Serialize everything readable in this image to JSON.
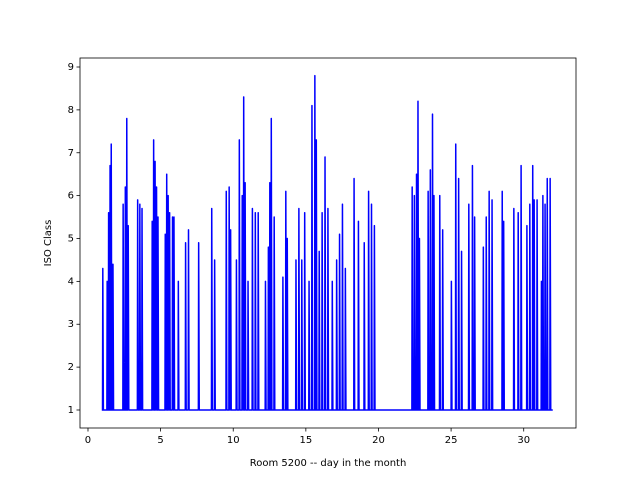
{
  "chart_data": {
    "type": "line",
    "xlabel": "Room 5200 -- day in the month",
    "ylabel": "ISO Class",
    "color": "#0000ff",
    "xlim": [
      -0.55,
      33.6
    ],
    "ylim": [
      0.58,
      9.21
    ],
    "xticks": [
      0,
      5,
      10,
      15,
      20,
      25,
      30
    ],
    "yticks": [
      1,
      2,
      3,
      4,
      5,
      6,
      7,
      8,
      9
    ],
    "x": [
      0.95,
      1.0,
      1.02,
      1.06,
      1.3,
      1.32,
      1.36,
      1.4,
      1.42,
      1.46,
      1.5,
      1.52,
      1.56,
      1.58,
      1.6,
      1.64,
      1.7,
      1.72,
      1.76,
      2.4,
      2.42,
      2.46,
      2.55,
      2.57,
      2.61,
      2.65,
      2.67,
      2.71,
      2.75,
      2.77,
      2.81,
      3.4,
      3.42,
      3.46,
      3.55,
      3.57,
      3.61,
      3.7,
      3.72,
      3.76,
      4.4,
      4.42,
      4.46,
      4.5,
      4.52,
      4.56,
      4.6,
      4.62,
      4.66,
      4.7,
      4.72,
      4.76,
      4.8,
      4.82,
      4.86,
      5.3,
      5.32,
      5.36,
      5.4,
      5.42,
      5.46,
      5.5,
      5.52,
      5.56,
      5.6,
      5.62,
      5.66,
      5.8,
      5.82,
      5.86,
      5.9,
      5.92,
      5.96,
      6.2,
      6.22,
      6.26,
      6.7,
      6.72,
      6.76,
      6.9,
      6.92,
      6.96,
      7.6,
      7.62,
      7.66,
      8.5,
      8.52,
      8.56,
      8.7,
      8.72,
      8.76,
      9.5,
      9.52,
      9.56,
      9.7,
      9.72,
      9.76,
      9.8,
      9.82,
      9.86,
      10.2,
      10.22,
      10.26,
      10.4,
      10.42,
      10.46,
      10.6,
      10.62,
      10.66,
      10.7,
      10.72,
      10.76,
      10.8,
      10.82,
      10.86,
      11.0,
      11.02,
      11.06,
      11.3,
      11.32,
      11.36,
      11.5,
      11.52,
      11.56,
      11.7,
      11.72,
      11.76,
      12.2,
      12.22,
      12.26,
      12.4,
      12.42,
      12.46,
      12.5,
      12.52,
      12.56,
      12.6,
      12.62,
      12.66,
      12.8,
      12.82,
      12.86,
      13.4,
      13.42,
      13.46,
      13.6,
      13.62,
      13.66,
      13.7,
      13.72,
      13.76,
      14.3,
      14.32,
      14.36,
      14.5,
      14.52,
      14.56,
      14.7,
      14.72,
      14.76,
      14.9,
      14.92,
      14.96,
      15.2,
      15.22,
      15.26,
      15.4,
      15.42,
      15.46,
      15.6,
      15.62,
      15.66,
      15.7,
      15.72,
      15.76,
      15.9,
      15.92,
      15.96,
      16.1,
      16.12,
      16.16,
      16.3,
      16.32,
      16.36,
      16.5,
      16.52,
      16.56,
      16.8,
      16.82,
      16.86,
      17.1,
      17.12,
      17.16,
      17.3,
      17.32,
      17.36,
      17.5,
      17.52,
      17.56,
      17.7,
      17.72,
      17.76,
      18.3,
      18.32,
      18.36,
      18.6,
      18.62,
      18.66,
      19.0,
      19.02,
      19.06,
      19.3,
      19.32,
      19.36,
      19.5,
      19.52,
      19.56,
      19.7,
      19.72,
      19.76,
      22.3,
      22.32,
      22.36,
      22.45,
      22.47,
      22.51,
      22.6,
      22.62,
      22.66,
      22.7,
      22.72,
      22.76,
      22.8,
      22.82,
      22.86,
      23.4,
      23.42,
      23.46,
      23.55,
      23.57,
      23.61,
      23.7,
      23.72,
      23.76,
      23.8,
      23.82,
      23.86,
      24.2,
      24.22,
      24.26,
      24.4,
      24.42,
      24.46,
      25.0,
      25.02,
      25.06,
      25.3,
      25.32,
      25.36,
      25.5,
      25.52,
      25.56,
      25.7,
      25.72,
      25.76,
      26.2,
      26.22,
      26.26,
      26.45,
      26.47,
      26.51,
      26.6,
      26.62,
      26.66,
      27.2,
      27.22,
      27.26,
      27.4,
      27.42,
      27.46,
      27.6,
      27.62,
      27.66,
      27.8,
      27.82,
      27.86,
      28.5,
      28.52,
      28.56,
      28.6,
      28.62,
      28.66,
      29.3,
      29.32,
      29.36,
      29.6,
      29.62,
      29.66,
      29.8,
      29.82,
      29.86,
      30.2,
      30.22,
      30.26,
      30.4,
      30.42,
      30.46,
      30.6,
      30.62,
      30.66,
      30.7,
      30.72,
      30.76,
      30.9,
      30.92,
      30.96,
      31.2,
      31.22,
      31.26,
      31.3,
      31.32,
      31.36,
      31.45,
      31.47,
      31.51,
      31.6,
      31.62,
      31.66,
      31.8,
      31.82,
      31.86,
      32.0
    ],
    "values": [
      1,
      1,
      4.3,
      1,
      1,
      4.0,
      1,
      1,
      5.6,
      1,
      1,
      6.7,
      1,
      1,
      7.2,
      1,
      1,
      4.4,
      1,
      1,
      5.8,
      1,
      1,
      6.2,
      1,
      1,
      7.8,
      1,
      1,
      5.3,
      1,
      1,
      5.9,
      1,
      1,
      5.8,
      1,
      1,
      5.7,
      1,
      1,
      5.4,
      1,
      1,
      7.3,
      1,
      1,
      6.8,
      1,
      1,
      6.2,
      1,
      1,
      5.5,
      1,
      1,
      5.1,
      1,
      1,
      6.5,
      1,
      1,
      6.0,
      1,
      1,
      5.6,
      1,
      1,
      5.5,
      1,
      1,
      5.5,
      1,
      1,
      4.0,
      1,
      1,
      4.9,
      1,
      1,
      5.2,
      1,
      1,
      4.9,
      1,
      1,
      5.7,
      1,
      1,
      4.5,
      1,
      1,
      6.1,
      1,
      1,
      6.2,
      1,
      1,
      5.2,
      1,
      1,
      4.5,
      1,
      1,
      7.3,
      1,
      1,
      6.0,
      1,
      1,
      8.3,
      1,
      1,
      6.3,
      1,
      1,
      4.0,
      1,
      1,
      5.7,
      1,
      1,
      5.6,
      1,
      1,
      5.6,
      1,
      1,
      4.0,
      1,
      1,
      4.8,
      1,
      1,
      6.3,
      1,
      1,
      7.8,
      1,
      1,
      5.5,
      1,
      1,
      4.1,
      1,
      1,
      6.1,
      1,
      1,
      5.0,
      1,
      1,
      4.5,
      1,
      1,
      5.7,
      1,
      1,
      4.5,
      1,
      1,
      5.6,
      1,
      1,
      4.0,
      1,
      1,
      8.1,
      1,
      1,
      8.8,
      1,
      1,
      7.3,
      1,
      1,
      4.7,
      1,
      1,
      5.6,
      1,
      1,
      6.9,
      1,
      1,
      5.7,
      1,
      1,
      4.0,
      1,
      1,
      4.5,
      1,
      1,
      5.1,
      1,
      1,
      5.8,
      1,
      1,
      4.3,
      1,
      1,
      6.4,
      1,
      1,
      5.4,
      1,
      1,
      4.9,
      1,
      1,
      6.1,
      1,
      1,
      5.8,
      1,
      1,
      5.3,
      1,
      1,
      6.2,
      1,
      1,
      6.0,
      1,
      1,
      6.5,
      1,
      1,
      8.2,
      1,
      1,
      5.0,
      1,
      1,
      6.1,
      1,
      1,
      6.6,
      1,
      1,
      7.9,
      1,
      1,
      6.0,
      1,
      1,
      6.0,
      1,
      1,
      5.2,
      1,
      1,
      4.0,
      1,
      1,
      7.2,
      1,
      1,
      6.4,
      1,
      1,
      4.7,
      1,
      1,
      5.8,
      1,
      1,
      6.7,
      1,
      1,
      5.5,
      1,
      1,
      4.8,
      1,
      1,
      5.5,
      1,
      1,
      6.1,
      1,
      1,
      5.9,
      1,
      1,
      6.1,
      1,
      1,
      5.4,
      1,
      1,
      5.7,
      1,
      1,
      5.6,
      1,
      1,
      6.7,
      1,
      1,
      5.3,
      1,
      1,
      5.8,
      1,
      1,
      6.7,
      1,
      1,
      5.9,
      1,
      1,
      5.9,
      1,
      1,
      4.0,
      1,
      1,
      6.0,
      1,
      1,
      5.8,
      1,
      1,
      6.4,
      1,
      1,
      6.4,
      1,
      1
    ]
  }
}
